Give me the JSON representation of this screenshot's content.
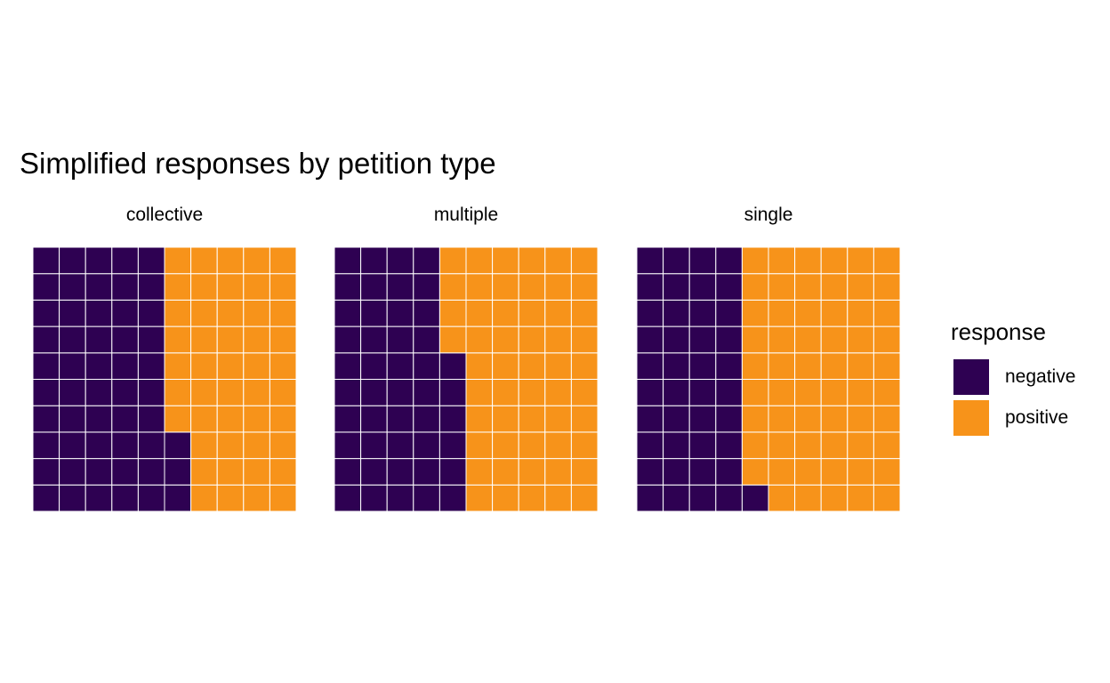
{
  "chart_data": {
    "type": "waffle",
    "title": "Simplified responses by petition type",
    "rows": 10,
    "cols": 10,
    "panels": [
      {
        "label": "collective",
        "values": {
          "negative": 53,
          "positive": 47
        }
      },
      {
        "label": "multiple",
        "values": {
          "negative": 46,
          "positive": 54
        }
      },
      {
        "label": "single",
        "values": {
          "negative": 41,
          "positive": 59
        }
      }
    ],
    "legend": {
      "title": "response",
      "position": "right",
      "items": [
        {
          "name": "negative",
          "color": "#2E0152"
        },
        {
          "name": "positive",
          "color": "#F7931A"
        }
      ]
    },
    "grid_line_color": "#FFFFFF"
  }
}
